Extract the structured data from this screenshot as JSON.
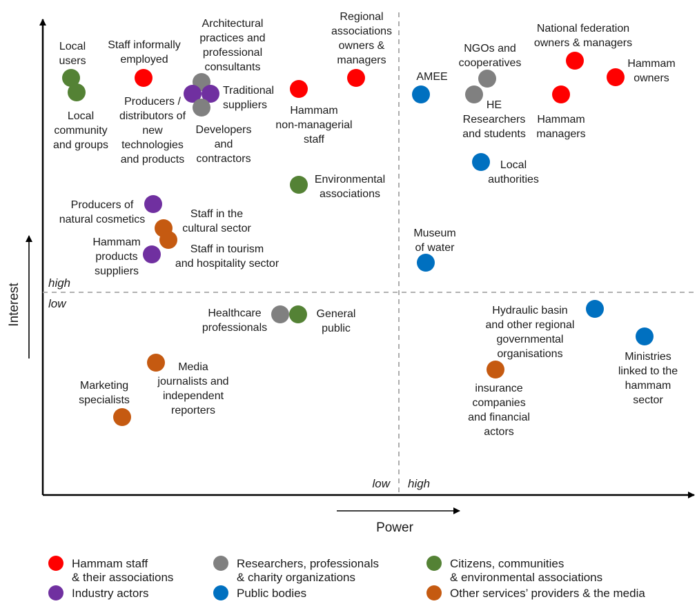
{
  "colors": {
    "hammam": "#FF0000",
    "researchers": "#808080",
    "citizens": "#548235",
    "industry": "#7030A0",
    "public": "#0070C0",
    "services": "#C55A11"
  },
  "axes": {
    "x_title": "Power",
    "y_title": "Interest",
    "power_low": "low",
    "power_high": "high",
    "interest_high": "high",
    "interest_low": "low"
  },
  "legend": [
    {
      "category": "hammam",
      "lines": [
        "Hammam staff",
        "& their associations"
      ]
    },
    {
      "category": "researchers",
      "lines": [
        "Researchers, professionals",
        "& charity organizations"
      ]
    },
    {
      "category": "citizens",
      "lines": [
        "Citizens, communities",
        "& environmental associations"
      ]
    },
    {
      "category": "industry",
      "lines": [
        "Industry actors"
      ]
    },
    {
      "category": "public",
      "lines": [
        "Public bodies"
      ]
    },
    {
      "category": "services",
      "lines": [
        "Other services’ providers & the media"
      ]
    }
  ],
  "stakeholders": [
    {
      "id": "local-users",
      "category": "citizens",
      "lines": [
        "Local",
        "users"
      ]
    },
    {
      "id": "local-community",
      "category": "citizens",
      "lines": [
        "Local",
        "community",
        "and groups"
      ]
    },
    {
      "id": "staff-informal",
      "category": "hammam",
      "lines": [
        "Staff informally",
        "employed"
      ]
    },
    {
      "id": "architectural",
      "category": "researchers",
      "lines": [
        "Architectural",
        "practices and",
        "professional",
        "consultants"
      ]
    },
    {
      "id": "producers-new-tech",
      "category": "industry",
      "lines": [
        "Producers /",
        "distributors of",
        "new",
        "technologies",
        "and products"
      ]
    },
    {
      "id": "traditional-suppliers",
      "category": "industry",
      "lines": [
        "Traditional",
        "suppliers"
      ]
    },
    {
      "id": "developers",
      "category": "researchers",
      "lines": [
        "Developers",
        "and",
        "contractors"
      ]
    },
    {
      "id": "hammam-nonmanagerial",
      "category": "hammam",
      "lines": [
        "Hammam",
        "non-managerial",
        "staff"
      ]
    },
    {
      "id": "regional-associations",
      "category": "hammam",
      "lines": [
        "Regional",
        "associations",
        "owners &",
        "managers"
      ]
    },
    {
      "id": "environmental-associations",
      "category": "citizens",
      "lines": [
        "Environmental",
        "associations"
      ]
    },
    {
      "id": "producers-cosmetics",
      "category": "industry",
      "lines": [
        "Producers of",
        "natural cosmetics"
      ]
    },
    {
      "id": "staff-cultural",
      "category": "services",
      "lines": [
        "Staff in the",
        "cultural sector"
      ]
    },
    {
      "id": "staff-tourism",
      "category": "services",
      "lines": [
        "Staff in tourism",
        "and hospitality sector"
      ]
    },
    {
      "id": "hammam-products-suppliers",
      "category": "industry",
      "lines": [
        "Hammam",
        "products",
        "suppliers"
      ]
    },
    {
      "id": "amee",
      "category": "public",
      "lines": [
        "AMEE"
      ]
    },
    {
      "id": "ngos",
      "category": "researchers",
      "lines": [
        "NGOs and",
        "cooperatives"
      ]
    },
    {
      "id": "he-researchers",
      "category": "researchers",
      "lines": [
        "HE",
        "Researchers",
        "and students"
      ]
    },
    {
      "id": "national-federation",
      "category": "hammam",
      "lines": [
        "National federation",
        "owners & managers"
      ]
    },
    {
      "id": "hammam-owners",
      "category": "hammam",
      "lines": [
        "Hammam",
        "owners"
      ]
    },
    {
      "id": "hammam-managers",
      "category": "hammam",
      "lines": [
        "Hammam",
        "managers"
      ]
    },
    {
      "id": "local-authorities",
      "category": "public",
      "lines": [
        "Local",
        "authorities"
      ]
    },
    {
      "id": "museum-water",
      "category": "public",
      "lines": [
        "Museum",
        "of water"
      ]
    },
    {
      "id": "healthcare",
      "category": "researchers",
      "lines": [
        "Healthcare",
        "professionals"
      ]
    },
    {
      "id": "general-public",
      "category": "citizens",
      "lines": [
        "General",
        "public"
      ]
    },
    {
      "id": "media",
      "category": "services",
      "lines": [
        "Media",
        "journalists and",
        "independent",
        "reporters"
      ]
    },
    {
      "id": "marketing",
      "category": "services",
      "lines": [
        "Marketing",
        "specialists"
      ]
    },
    {
      "id": "hydraulic-basin",
      "category": "public",
      "lines": [
        "Hydraulic basin",
        "and other regional",
        "governmental",
        "organisations"
      ]
    },
    {
      "id": "ministries",
      "category": "public",
      "lines": [
        "Ministries",
        "linked to the",
        "hammam",
        "sector"
      ]
    },
    {
      "id": "insurance",
      "category": "services",
      "lines": [
        "insurance",
        "companies",
        "and financial",
        "actors"
      ]
    }
  ]
}
